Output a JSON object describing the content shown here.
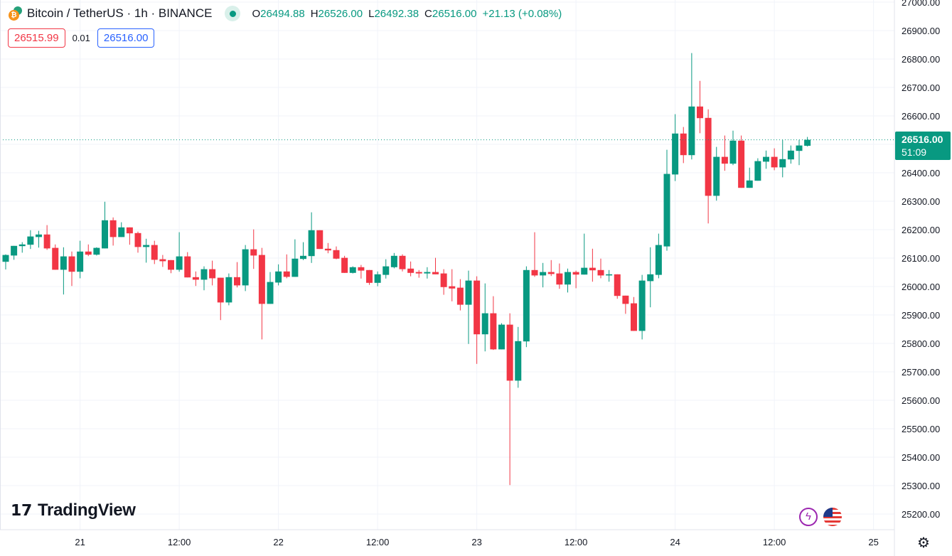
{
  "header": {
    "title": "Bitcoin / TetherUS · 1h · BINANCE",
    "open_label": "O",
    "open": "26494.88",
    "high_label": "H",
    "high": "26526.00",
    "low_label": "L",
    "low": "26492.38",
    "close_label": "C",
    "close": "26516.00",
    "change": "+21.13 (+0.08%)",
    "bid": "26515.99",
    "spread": "0.01",
    "ask": "26516.00"
  },
  "current_price": {
    "price": "26516.00",
    "countdown": "51:09",
    "value": 26516
  },
  "branding": "TradingView",
  "colors": {
    "up": "#089981",
    "down": "#f23645",
    "grid": "#f0f3fa"
  },
  "icons": [
    "bitcoin-logo-icon",
    "market-open-dot-icon",
    "lightning-icon",
    "us-flag-icon",
    "settings-gear-icon"
  ],
  "chart_data": {
    "type": "candlestick",
    "title": "Bitcoin / TetherUS · 1h · BINANCE",
    "interval": "1h",
    "first_candle": "20 15:00",
    "ylim": [
      25200,
      27000
    ],
    "y_ticks": [
      "27000.00",
      "26900.00",
      "26800.00",
      "26700.00",
      "26600.00",
      "26500.00",
      "26400.00",
      "26300.00",
      "26200.00",
      "26100.00",
      "26000.00",
      "25900.00",
      "25800.00",
      "25700.00",
      "25600.00",
      "25500.00",
      "25400.00",
      "25300.00",
      "25200.00"
    ],
    "x_ticks": [
      {
        "label": "21",
        "hour": 9
      },
      {
        "label": "12:00",
        "hour": 21
      },
      {
        "label": "22",
        "hour": 33
      },
      {
        "label": "12:00",
        "hour": 45
      },
      {
        "label": "23",
        "hour": 57
      },
      {
        "label": "12:00",
        "hour": 69
      },
      {
        "label": "24",
        "hour": 81
      },
      {
        "label": "12:00",
        "hour": 93
      },
      {
        "label": "25",
        "hour": 105
      }
    ],
    "ohlc": [
      [
        26087,
        26113,
        26060,
        26111
      ],
      [
        26109,
        26143,
        26094,
        26143
      ],
      [
        26142,
        26156,
        26119,
        26148
      ],
      [
        26147,
        26198,
        26132,
        26176
      ],
      [
        26174,
        26196,
        26137,
        26183
      ],
      [
        26183,
        26216,
        26129,
        26134
      ],
      [
        26136,
        26148,
        26059,
        26059
      ],
      [
        26059,
        26138,
        25972,
        26106
      ],
      [
        26106,
        26123,
        26002,
        26052
      ],
      [
        26052,
        26161,
        26029,
        26123
      ],
      [
        26123,
        26148,
        26107,
        26112
      ],
      [
        26112,
        26138,
        26109,
        26136
      ],
      [
        26134,
        26298,
        26134,
        26233
      ],
      [
        26233,
        26243,
        26144,
        26174
      ],
      [
        26174,
        26226,
        26174,
        26208
      ],
      [
        26208,
        26208,
        26147,
        26187
      ],
      [
        26188,
        26193,
        26119,
        26139
      ],
      [
        26139,
        26168,
        26084,
        26146
      ],
      [
        26146,
        26161,
        26079,
        26094
      ],
      [
        26096,
        26111,
        26069,
        26089
      ],
      [
        26093,
        26093,
        26047,
        26059
      ],
      [
        26059,
        26191,
        26052,
        26106
      ],
      [
        26106,
        26121,
        26032,
        26032
      ],
      [
        26033,
        26053,
        26002,
        26024
      ],
      [
        26024,
        26071,
        25987,
        26061
      ],
      [
        26061,
        26091,
        26004,
        26029
      ],
      [
        26031,
        26031,
        25882,
        25944
      ],
      [
        25944,
        26046,
        25934,
        26033
      ],
      [
        26033,
        26086,
        25997,
        26004
      ],
      [
        26004,
        26146,
        25984,
        26131
      ],
      [
        26131,
        26201,
        26062,
        26109
      ],
      [
        26111,
        26136,
        25814,
        25939
      ],
      [
        25939,
        26051,
        25939,
        26016
      ],
      [
        26014,
        26078,
        26004,
        26053
      ],
      [
        26053,
        26113,
        26029,
        26034
      ],
      [
        26034,
        26166,
        26034,
        26098
      ],
      [
        26097,
        26156,
        26093,
        26108
      ],
      [
        26107,
        26261,
        26083,
        26198
      ],
      [
        26198,
        26198,
        26132,
        26132
      ],
      [
        26133,
        26153,
        26117,
        26127
      ],
      [
        26128,
        26141,
        26096,
        26098
      ],
      [
        26101,
        26108,
        26048,
        26048
      ],
      [
        26048,
        26071,
        26046,
        26068
      ],
      [
        26068,
        26076,
        26028,
        26056
      ],
      [
        26058,
        26058,
        26006,
        26013
      ],
      [
        26013,
        26053,
        26001,
        26043
      ],
      [
        26041,
        26096,
        26028,
        26071
      ],
      [
        26068,
        26118,
        26064,
        26108
      ],
      [
        26108,
        26113,
        26053,
        26061
      ],
      [
        26063,
        26088,
        26036,
        26048
      ],
      [
        26051,
        26058,
        26031,
        26046
      ],
      [
        26046,
        26068,
        26028,
        26051
      ],
      [
        26051,
        26101,
        26043,
        26043
      ],
      [
        26046,
        26061,
        25971,
        25998
      ],
      [
        26001,
        26061,
        25948,
        25993
      ],
      [
        25996,
        26026,
        25916,
        25936
      ],
      [
        25936,
        26056,
        25798,
        26021
      ],
      [
        26021,
        26036,
        25728,
        25832
      ],
      [
        25832,
        26011,
        25772,
        25906
      ],
      [
        25906,
        25966,
        25777,
        25779
      ],
      [
        25779,
        25871,
        25779,
        25866
      ],
      [
        25866,
        25906,
        25302,
        25669
      ],
      [
        25669,
        25858,
        25644,
        25808
      ],
      [
        25807,
        26071,
        25787,
        26058
      ],
      [
        26058,
        26191,
        26034,
        26039
      ],
      [
        26039,
        26083,
        25997,
        26051
      ],
      [
        26051,
        26093,
        26037,
        26044
      ],
      [
        26046,
        26081,
        25992,
        26007
      ],
      [
        26007,
        26063,
        25979,
        26051
      ],
      [
        26051,
        26056,
        25994,
        26042
      ],
      [
        26042,
        26186,
        26042,
        26066
      ],
      [
        26066,
        26133,
        26017,
        26057
      ],
      [
        26058,
        26098,
        26029,
        26039
      ],
      [
        26039,
        26058,
        26017,
        26043
      ],
      [
        26043,
        26043,
        25957,
        25967
      ],
      [
        25968,
        25968,
        25904,
        25939
      ],
      [
        25941,
        25963,
        25844,
        25844
      ],
      [
        25844,
        26041,
        25814,
        26021
      ],
      [
        26019,
        26138,
        25927,
        26043
      ],
      [
        26041,
        26186,
        26029,
        26146
      ],
      [
        26141,
        26481,
        26126,
        26396
      ],
      [
        26394,
        26606,
        26371,
        26538
      ],
      [
        26538,
        26561,
        26434,
        26462
      ],
      [
        26462,
        26821,
        26447,
        26633
      ],
      [
        26633,
        26723,
        26539,
        26592
      ],
      [
        26593,
        26623,
        26222,
        26319
      ],
      [
        26319,
        26491,
        26302,
        26456
      ],
      [
        26456,
        26531,
        26407,
        26432
      ],
      [
        26432,
        26548,
        26427,
        26513
      ],
      [
        26513,
        26531,
        26347,
        26347
      ],
      [
        26347,
        26418,
        26347,
        26373
      ],
      [
        26372,
        26451,
        26372,
        26441
      ],
      [
        26439,
        26478,
        26414,
        26456
      ],
      [
        26456,
        26486,
        26409,
        26419
      ],
      [
        26419,
        26516,
        26384,
        26448
      ],
      [
        26447,
        26496,
        26432,
        26478
      ],
      [
        26477,
        26516,
        26427,
        26496
      ],
      [
        26494.88,
        26526,
        26492.38,
        26516
      ]
    ]
  }
}
